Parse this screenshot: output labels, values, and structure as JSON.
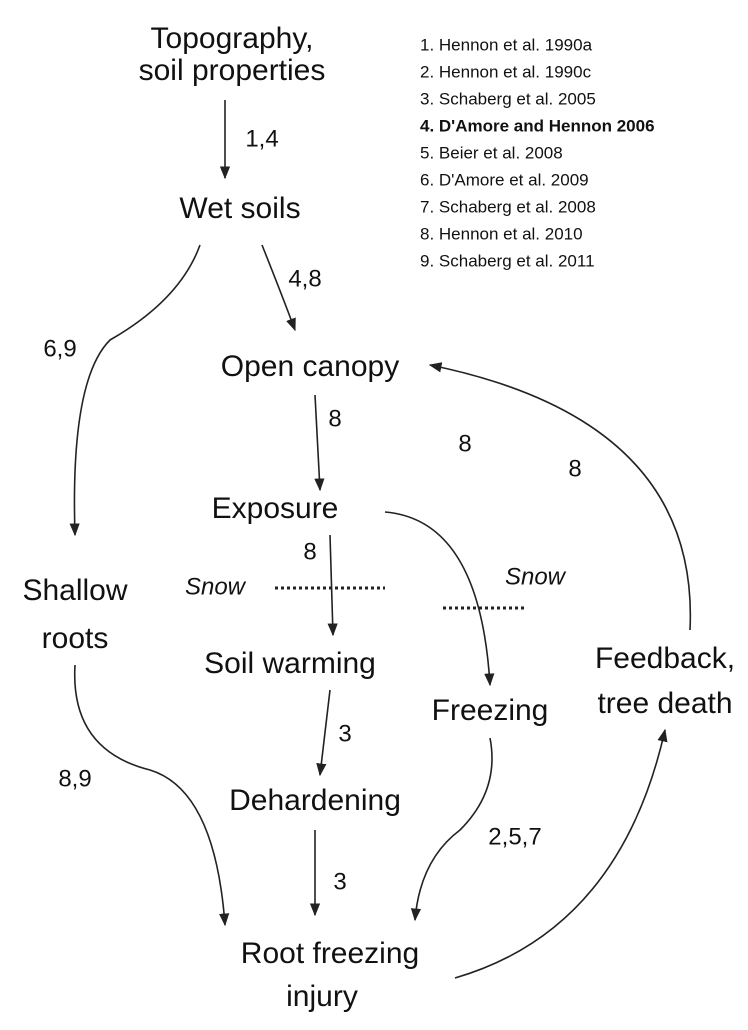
{
  "nodes": [
    {
      "id": "topo",
      "lines": [
        "Topography,",
        "soil properties"
      ]
    },
    {
      "id": "wet",
      "lines": [
        "Wet soils"
      ]
    },
    {
      "id": "canopy",
      "lines": [
        "Open canopy"
      ]
    },
    {
      "id": "exposure",
      "lines": [
        "Exposure"
      ]
    },
    {
      "id": "shallow",
      "lines": [
        "Shallow",
        "roots"
      ]
    },
    {
      "id": "warming",
      "lines": [
        "Soil warming"
      ]
    },
    {
      "id": "freezing",
      "lines": [
        "Freezing"
      ]
    },
    {
      "id": "dehard",
      "lines": [
        "Dehardening"
      ]
    },
    {
      "id": "feedback",
      "lines": [
        "Feedback,",
        "tree death"
      ]
    },
    {
      "id": "root",
      "lines": [
        "Root  freezing",
        "injury"
      ]
    }
  ],
  "edges": [
    {
      "label": "1,4"
    },
    {
      "label": "4,8"
    },
    {
      "label": "6,9"
    },
    {
      "label": "8"
    },
    {
      "label": "8"
    },
    {
      "label": "8"
    },
    {
      "label": "8"
    },
    {
      "label": "3"
    },
    {
      "label": "8,9"
    },
    {
      "label": "3"
    },
    {
      "label": "2,5,7"
    }
  ],
  "snow": [
    "Snow",
    "Snow"
  ],
  "references": [
    "1. Hennon et al. 1990a",
    "2. Hennon et al. 1990c",
    "3. Schaberg et al. 2005",
    "4. D'Amore and Hennon 2006",
    "5. Beier et al. 2008",
    "6. D'Amore et al. 2009",
    "7. Schaberg et al. 2008",
    "8. Hennon et al. 2010",
    "9. Schaberg et al. 2011"
  ]
}
